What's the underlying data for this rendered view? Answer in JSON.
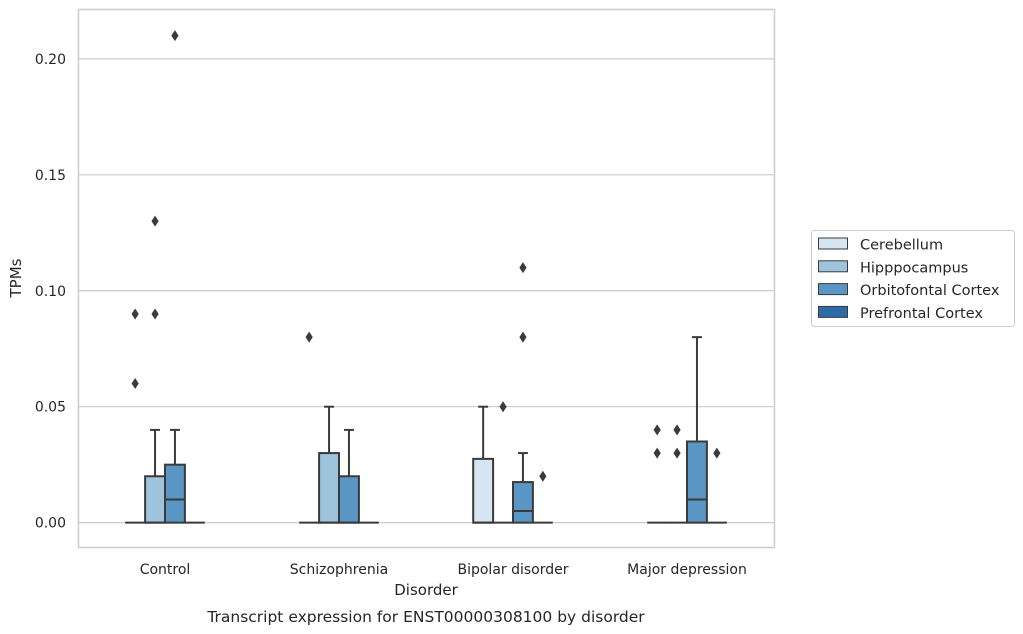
{
  "caption": "Transcript expression for ENST00000308100 by disorder",
  "chart_data": {
    "type": "box",
    "xlabel": "Disorder",
    "ylabel": "TPMs",
    "ylim": [
      -0.0105,
      0.2215
    ],
    "yticks": [
      "0.00",
      "0.05",
      "0.10",
      "0.15",
      "0.20"
    ],
    "ytick_values": [
      0,
      0.05,
      0.1,
      0.15,
      0.2
    ],
    "grid": "horizontal",
    "legend_position": "right",
    "categories": [
      "Control",
      "Schizophrenia",
      "Bipolar disorder",
      "Major depression"
    ],
    "series": [
      {
        "name": "Cerebellum",
        "color": "#d5e5f2",
        "boxes": [
          {
            "q1": 0,
            "median": 0,
            "q3": 0,
            "whisker_low": 0,
            "whisker_high": 0,
            "outliers": [
              0.06,
              0.09
            ]
          },
          {
            "q1": 0,
            "median": 0,
            "q3": 0,
            "whisker_low": 0,
            "whisker_high": 0,
            "outliers": [
              0.08
            ]
          },
          {
            "q1": 0,
            "median": 0,
            "q3": 0.0275,
            "whisker_low": 0,
            "whisker_high": 0.05,
            "outliers": []
          },
          {
            "q1": 0,
            "median": 0,
            "q3": 0,
            "whisker_low": 0,
            "whisker_high": 0,
            "outliers": [
              0.03,
              0.04
            ]
          }
        ]
      },
      {
        "name": "Hipppocampus",
        "color": "#9dc3dd",
        "boxes": [
          {
            "q1": 0,
            "median": 0,
            "q3": 0.02,
            "whisker_low": 0,
            "whisker_high": 0.04,
            "outliers": [
              0.09,
              0.13
            ]
          },
          {
            "q1": 0,
            "median": 0,
            "q3": 0.03,
            "whisker_low": 0,
            "whisker_high": 0.05,
            "outliers": []
          },
          {
            "q1": 0,
            "median": 0,
            "q3": 0,
            "whisker_low": 0,
            "whisker_high": 0,
            "outliers": [
              0.05
            ]
          },
          {
            "q1": 0,
            "median": 0,
            "q3": 0,
            "whisker_low": 0,
            "whisker_high": 0,
            "outliers": [
              0.03,
              0.04
            ]
          }
        ]
      },
      {
        "name": "Orbitofontal Cortex",
        "color": "#5a96c3",
        "boxes": [
          {
            "q1": 0,
            "median": 0.01,
            "q3": 0.025,
            "whisker_low": 0,
            "whisker_high": 0.04,
            "outliers": [
              0.21
            ]
          },
          {
            "q1": 0,
            "median": 0,
            "q3": 0.02,
            "whisker_low": 0,
            "whisker_high": 0.04,
            "outliers": []
          },
          {
            "q1": 0,
            "median": 0.005,
            "q3": 0.0175,
            "whisker_low": 0,
            "whisker_high": 0.03,
            "outliers": [
              0.08,
              0.11
            ]
          },
          {
            "q1": 0,
            "median": 0.01,
            "q3": 0.035,
            "whisker_low": 0,
            "whisker_high": 0.08,
            "outliers": []
          }
        ]
      },
      {
        "name": "Prefrontal Cortex",
        "color": "#2b6ba6",
        "boxes": [
          {
            "q1": 0,
            "median": 0,
            "q3": 0,
            "whisker_low": 0,
            "whisker_high": 0,
            "outliers": []
          },
          {
            "q1": 0,
            "median": 0,
            "q3": 0,
            "whisker_low": 0,
            "whisker_high": 0,
            "outliers": []
          },
          {
            "q1": 0,
            "median": 0,
            "q3": 0,
            "whisker_low": 0,
            "whisker_high": 0,
            "outliers": [
              0.02
            ]
          },
          {
            "q1": 0,
            "median": 0,
            "q3": 0,
            "whisker_low": 0,
            "whisker_high": 0,
            "outliers": [
              0.03
            ]
          }
        ]
      }
    ]
  }
}
